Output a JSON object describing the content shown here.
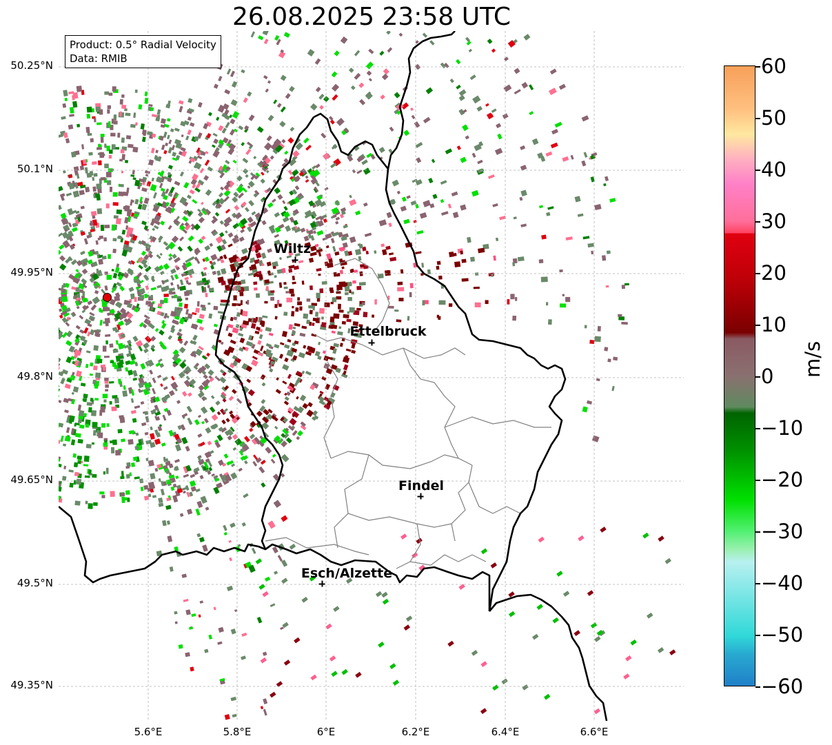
{
  "title": "26.08.2025 23:58 UTC",
  "info_box": {
    "product": "Product: 0.5° Radial Velocity",
    "data": "Data: RMIB"
  },
  "y_ticks": [
    "50.25°N",
    "50.1°N",
    "49.95°N",
    "49.8°N",
    "49.65°N",
    "49.5°N",
    "49.35°N"
  ],
  "x_ticks": [
    "5.6°E",
    "5.8°E",
    "6°E",
    "6.2°E",
    "6.4°E",
    "6.6°E"
  ],
  "cities": {
    "wiltz": "Wiltz",
    "ettelbruck": "Ettelbruck",
    "findel": "Findel",
    "esch": "Esch/Alzette"
  },
  "colorbar": {
    "label": "m/s",
    "ticks": [
      "60",
      "50",
      "40",
      "30",
      "20",
      "10",
      "0",
      "−10",
      "−20",
      "−30",
      "−40",
      "−50",
      "−60"
    ],
    "range": [
      -60,
      60
    ],
    "colors": {
      "strong_away": "#f7a05a",
      "away_pink": "#ff6f9a",
      "away_red": "#e00010",
      "away_dark": "#7a0000",
      "near_zero_pos": "#8a5a62",
      "near_zero_neg": "#5f8a5f",
      "toward_dark": "#006400",
      "toward_green": "#00e000",
      "toward_light": "#9af0b0",
      "toward_cyan": "#30d8d8",
      "strong_toward": "#2080c8"
    }
  },
  "chart_data": {
    "type": "map",
    "product": "0.5° Radial Velocity",
    "source": "RMIB",
    "valid_time": "26.08.2025 23:58 UTC",
    "lat_range": [
      49.28,
      50.3
    ],
    "lon_range": [
      5.4,
      6.8
    ],
    "places": [
      {
        "name": "Wiltz",
        "lat": 49.965,
        "lon": 5.93
      },
      {
        "name": "Ettelbruck",
        "lat": 49.848,
        "lon": 6.1
      },
      {
        "name": "Findel",
        "lat": 49.627,
        "lon": 6.21
      },
      {
        "name": "Esch/Alzette",
        "lat": 49.5,
        "lon": 5.99
      }
    ],
    "radar_site": {
      "lat": 49.915,
      "lon": 5.505
    },
    "units": "m/s"
  }
}
